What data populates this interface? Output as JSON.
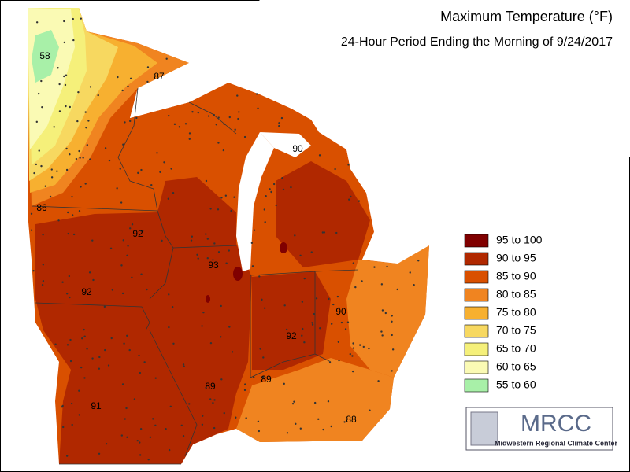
{
  "header": {
    "title": "Maximum Temperature (°F)",
    "subtitle": "24-Hour Period Ending the Morning of 9/24/2017"
  },
  "legend": [
    {
      "label": "95 to 100",
      "color": "#800000"
    },
    {
      "label": "90 to 95",
      "color": "#b02800"
    },
    {
      "label": "85 to 90",
      "color": "#d95000"
    },
    {
      "label": "80 to 85",
      "color": "#f08420"
    },
    {
      "label": "75 to 80",
      "color": "#f7b030"
    },
    {
      "label": "70 to 75",
      "color": "#f7d860"
    },
    {
      "label": "65 to 70",
      "color": "#f5f07a"
    },
    {
      "label": "60 to 65",
      "color": "#fafab4"
    },
    {
      "label": "55 to 60",
      "color": "#a8f0a8"
    }
  ],
  "station_labels": [
    58,
    87,
    86,
    92,
    92,
    93,
    90,
    90,
    92,
    89,
    89,
    91,
    88
  ],
  "logo": {
    "name": "MRCC",
    "full_name": "Midwestern Regional Climate Center"
  }
}
